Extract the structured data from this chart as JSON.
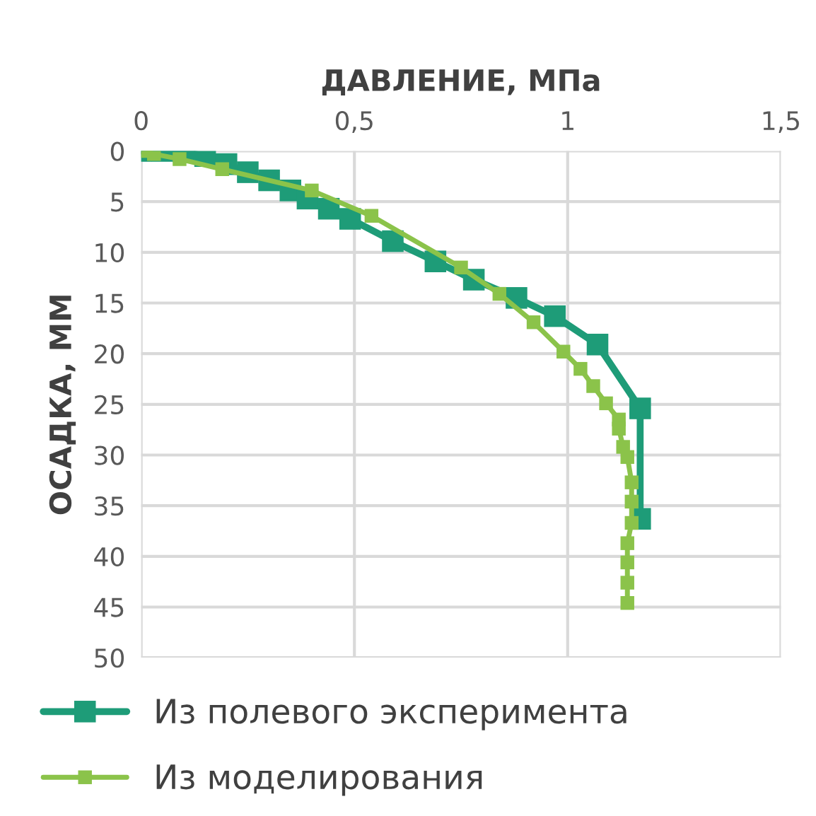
{
  "chart_data": {
    "type": "line",
    "xlabel": "ДАВЛЕНИЕ, МПа",
    "ylabel": "ОСАДКА, ММ",
    "xlim": [
      0,
      1.5
    ],
    "xticks": [
      0,
      {
        "value": 0.5,
        "label": "0,5"
      },
      1,
      {
        "value": 1.5,
        "label": "1,5"
      }
    ],
    "ylim": [
      50,
      0
    ],
    "yticks": [
      0,
      5,
      10,
      15,
      20,
      25,
      30,
      35,
      40,
      45,
      50
    ],
    "grid": true,
    "legend": "bottom",
    "marker": "square",
    "line_style": "solid",
    "series": [
      {
        "name": "Из полевого эксперимента",
        "color": "#1e9c78",
        "x": [
          0,
          0.05,
          0.1,
          0.15,
          0.2,
          0.25,
          0.3,
          0.35,
          0.39,
          0.44,
          0.49,
          0.59,
          0.69,
          0.78,
          0.88,
          0.97,
          1.07,
          1.17,
          1.17
        ],
        "values": [
          0,
          0,
          0.1,
          0.5,
          1.3,
          2.1,
          2.9,
          3.9,
          4.7,
          5.7,
          6.7,
          8.9,
          10.9,
          12.7,
          14.5,
          16.3,
          19.1,
          25.4,
          36.3
        ]
      },
      {
        "name": "Из моделирования",
        "color": "#8bc34a",
        "x": [
          0.01,
          0.03,
          0.09,
          0.19,
          0.4,
          0.54,
          0.75,
          0.84,
          0.92,
          0.99,
          1.03,
          1.06,
          1.09,
          1.12,
          1.12,
          1.13,
          1.14,
          1.15,
          1.15,
          1.15,
          1.14,
          1.14,
          1.14,
          1.14
        ],
        "values": [
          0,
          0.3,
          0.8,
          1.8,
          3.9,
          6.4,
          11.5,
          14.1,
          16.9,
          19.8,
          21.5,
          23.2,
          24.9,
          26.5,
          27.4,
          29.2,
          30.2,
          32.7,
          34.6,
          36.7,
          38.7,
          40.6,
          42.6,
          44.6
        ]
      }
    ]
  }
}
